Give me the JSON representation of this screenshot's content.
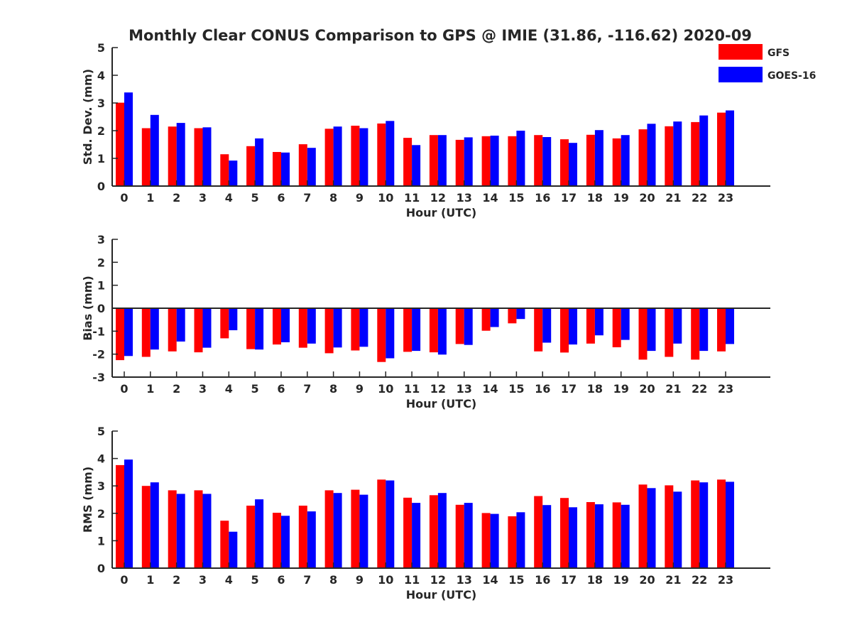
{
  "title": "Monthly Clear CONUS Comparison to GPS @ IMIE (31.86, -116.62) 2020-09",
  "legend": {
    "position": "top-right",
    "entries": [
      {
        "name": "GFS",
        "color": "#ff0000"
      },
      {
        "name": "GOES-16",
        "color": "#0000ff"
      }
    ]
  },
  "colors": {
    "axis": "#262626",
    "background": "#ffffff"
  },
  "chart_data": [
    {
      "type": "bar",
      "xlabel": "Hour (UTC)",
      "ylabel": "Std. Dev. (mm)",
      "ylim": [
        0,
        5
      ],
      "yticks": [
        0,
        1,
        2,
        3,
        4,
        5
      ],
      "grid": false,
      "categories": [
        "0",
        "1",
        "2",
        "3",
        "4",
        "5",
        "6",
        "7",
        "8",
        "9",
        "10",
        "11",
        "12",
        "13",
        "14",
        "15",
        "16",
        "17",
        "18",
        "19",
        "20",
        "21",
        "22",
        "23"
      ],
      "series": [
        {
          "name": "GFS",
          "color": "#ff0000",
          "values": [
            3.01,
            2.09,
            2.15,
            2.09,
            1.15,
            1.44,
            1.23,
            1.51,
            2.07,
            2.18,
            2.26,
            1.74,
            1.84,
            1.67,
            1.8,
            1.8,
            1.84,
            1.69,
            1.85,
            1.72,
            2.05,
            2.16,
            2.31,
            2.65
          ]
        },
        {
          "name": "GOES-16",
          "color": "#0000ff",
          "values": [
            3.38,
            2.57,
            2.28,
            2.12,
            0.92,
            1.72,
            1.21,
            1.38,
            2.15,
            2.09,
            2.35,
            1.48,
            1.84,
            1.76,
            1.82,
            2.0,
            1.77,
            1.56,
            2.02,
            1.84,
            2.25,
            2.33,
            2.55,
            2.73
          ]
        }
      ]
    },
    {
      "type": "bar",
      "xlabel": "Hour (UTC)",
      "ylabel": "Bias (mm)",
      "ylim": [
        -3,
        3
      ],
      "yticks": [
        -3,
        -2,
        -1,
        0,
        1,
        2,
        3
      ],
      "grid": false,
      "categories": [
        "0",
        "1",
        "2",
        "3",
        "4",
        "5",
        "6",
        "7",
        "8",
        "9",
        "10",
        "11",
        "12",
        "13",
        "14",
        "15",
        "16",
        "17",
        "18",
        "19",
        "20",
        "21",
        "22",
        "23"
      ],
      "series": [
        {
          "name": "GFS",
          "color": "#ff0000",
          "values": [
            -2.26,
            -2.12,
            -1.88,
            -1.92,
            -1.31,
            -1.78,
            -1.58,
            -1.72,
            -1.96,
            -1.84,
            -2.34,
            -1.9,
            -1.92,
            -1.56,
            -0.98,
            -0.66,
            -1.88,
            -1.93,
            -1.54,
            -1.7,
            -2.24,
            -2.12,
            -2.24,
            -1.88
          ]
        },
        {
          "name": "GOES-16",
          "color": "#0000ff",
          "values": [
            -2.08,
            -1.8,
            -1.45,
            -1.72,
            -0.96,
            -1.8,
            -1.48,
            -1.54,
            -1.71,
            -1.68,
            -2.18,
            -1.86,
            -2.02,
            -1.6,
            -0.82,
            -0.47,
            -1.5,
            -1.58,
            -1.18,
            -1.38,
            -1.86,
            -1.54,
            -1.86,
            -1.56
          ]
        }
      ]
    },
    {
      "type": "bar",
      "xlabel": "Hour (UTC)",
      "ylabel": "RMS (mm)",
      "ylim": [
        0,
        5
      ],
      "yticks": [
        0,
        1,
        2,
        3,
        4,
        5
      ],
      "grid": false,
      "categories": [
        "0",
        "1",
        "2",
        "3",
        "4",
        "5",
        "6",
        "7",
        "8",
        "9",
        "10",
        "11",
        "12",
        "13",
        "14",
        "15",
        "16",
        "17",
        "18",
        "19",
        "20",
        "21",
        "22",
        "23"
      ],
      "series": [
        {
          "name": "GFS",
          "color": "#ff0000",
          "values": [
            3.76,
            3.0,
            2.84,
            2.84,
            1.73,
            2.28,
            2.02,
            2.28,
            2.84,
            2.86,
            3.23,
            2.57,
            2.66,
            2.31,
            2.01,
            1.89,
            2.63,
            2.56,
            2.41,
            2.4,
            3.05,
            3.02,
            3.2,
            3.23
          ]
        },
        {
          "name": "GOES-16",
          "color": "#0000ff",
          "values": [
            3.96,
            3.13,
            2.71,
            2.71,
            1.33,
            2.51,
            1.91,
            2.07,
            2.74,
            2.68,
            3.2,
            2.38,
            2.74,
            2.38,
            1.98,
            2.04,
            2.3,
            2.22,
            2.33,
            2.31,
            2.92,
            2.79,
            3.13,
            3.15
          ]
        }
      ]
    }
  ]
}
